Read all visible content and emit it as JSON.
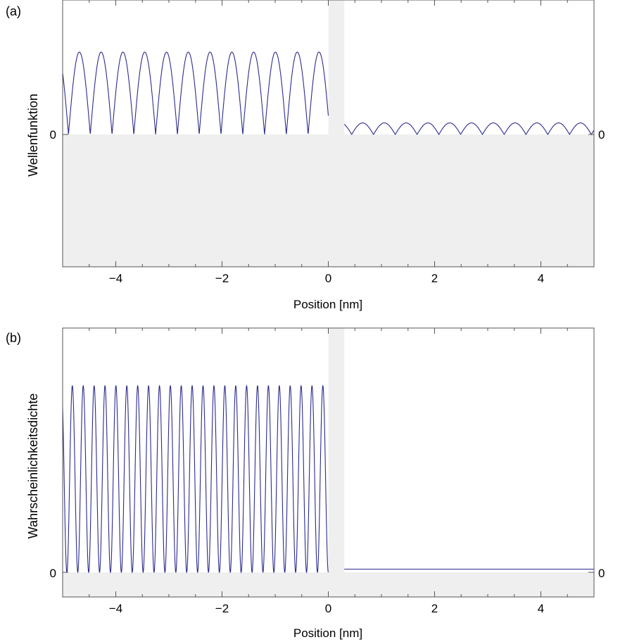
{
  "chart_data": [
    {
      "type": "line",
      "panel_label": "(a)",
      "xlabel": "Position [nm]",
      "ylabel": "Wellenfunktion",
      "xlim": [
        -5,
        5
      ],
      "xticks": [
        -4,
        -2,
        0,
        2,
        4
      ],
      "xtick_labels": [
        "−4",
        "−2",
        "0",
        "2",
        "4"
      ],
      "ytick_labels": [
        "0"
      ],
      "right_ytick_labels": [
        "0"
      ],
      "barrier": {
        "x_start": 0,
        "x_end": 0.3
      },
      "shaded_region": "below y = 0 and barrier",
      "series": [
        {
          "style": "rectified wave |sin|",
          "color": "#2b2b8f",
          "segments": [
            {
              "x_range": [
                -5,
                0
              ],
              "amplitude": 1.0,
              "period_nm": 0.41
            },
            {
              "x_range": [
                0.3,
                5
              ],
              "amplitude": 0.14,
              "period_nm": 0.41
            }
          ]
        }
      ],
      "ylim": [
        -1.6,
        1.6
      ]
    },
    {
      "type": "line",
      "panel_label": "(b)",
      "xlabel": "Position [nm]",
      "ylabel": "Wahrscheinlichkeitsdichte",
      "xlim": [
        -5,
        5
      ],
      "xticks": [
        -4,
        -2,
        0,
        2,
        4
      ],
      "xtick_labels": [
        "−4",
        "−2",
        "0",
        "2",
        "4"
      ],
      "ytick_labels": [
        "0"
      ],
      "right_ytick_labels": [
        "0"
      ],
      "barrier": {
        "x_start": 0,
        "x_end": 0.3
      },
      "shaded_region": "below y = 0 and barrier",
      "series": [
        {
          "style": "sin^2 oscillation",
          "color": "#2b2b8f",
          "segments": [
            {
              "x_range": [
                -5,
                0
              ],
              "amplitude": 1.0,
              "period_nm": 0.205
            },
            {
              "x_range": [
                0.3,
                5
              ],
              "amplitude": 0.017,
              "constant": true
            }
          ]
        }
      ],
      "ylim": [
        -0.13,
        1.2
      ]
    }
  ]
}
